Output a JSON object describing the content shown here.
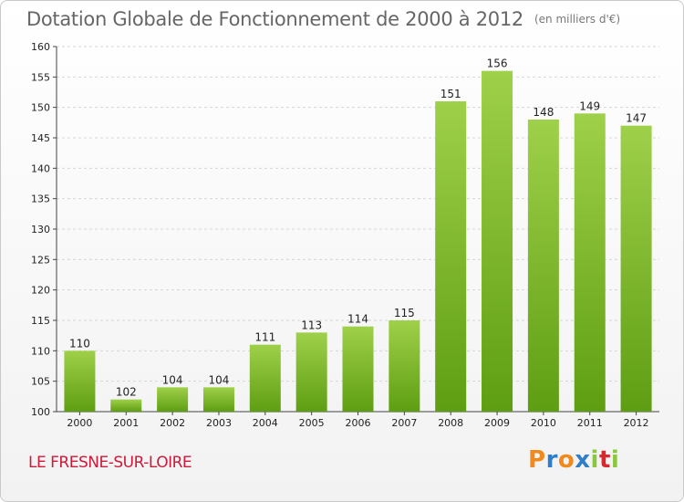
{
  "chart_data": {
    "type": "bar",
    "title": "Dotation Globale de Fonctionnement de 2000 à 2012",
    "subtitle": "(en milliers d'€)",
    "categories": [
      "2000",
      "2001",
      "2002",
      "2003",
      "2004",
      "2005",
      "2006",
      "2007",
      "2008",
      "2009",
      "2010",
      "2011",
      "2012"
    ],
    "values": [
      110,
      102,
      104,
      104,
      111,
      113,
      114,
      115,
      151,
      156,
      148,
      149,
      147
    ],
    "data_labels": [
      "110",
      "102",
      "104",
      "104",
      "111",
      "113",
      "114",
      "115",
      "151",
      "156",
      "148",
      "149",
      "147"
    ],
    "ylim": [
      100,
      160
    ],
    "yticks": [
      100,
      105,
      110,
      115,
      120,
      125,
      130,
      135,
      140,
      145,
      150,
      155,
      160
    ],
    "ytick_labels": [
      "100",
      "105",
      "110",
      "115",
      "120",
      "125",
      "130",
      "135",
      "140",
      "145",
      "150",
      "155",
      "160"
    ],
    "grid": true,
    "bar_color_top": "#9fd04a",
    "bar_color_bottom": "#5e9e12"
  },
  "commune": "LE FRESNE-SUR-LOIRE",
  "logo": {
    "letters": [
      "P",
      "r",
      "o",
      "x",
      "i",
      "t",
      "i"
    ],
    "colors": [
      "#f08a1c",
      "#2f7fc8",
      "#f08a1c",
      "#2f7fc8",
      "#8cc63f",
      "#d8282e",
      "#8cc63f"
    ]
  }
}
